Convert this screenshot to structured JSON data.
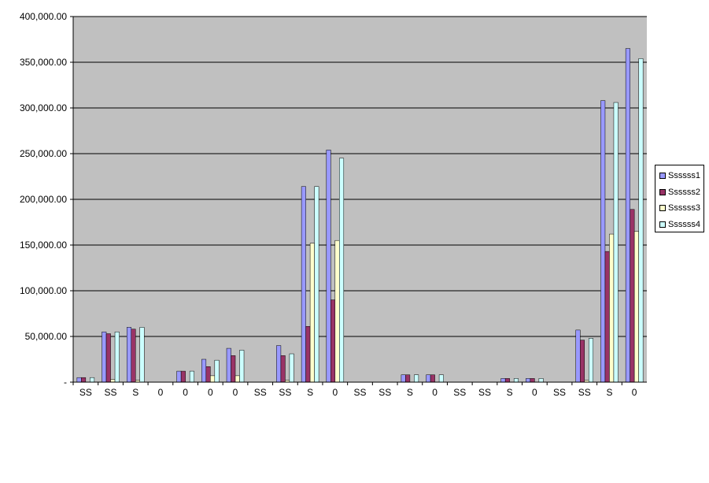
{
  "chart_data": {
    "type": "bar",
    "categories": [
      "SS",
      "SS",
      "S",
      "0",
      "0",
      "0",
      "0",
      "SS",
      "SS",
      "S",
      "0",
      "SS",
      "SS",
      "S",
      "0",
      "SS",
      "SS",
      "S",
      "0",
      "SS",
      "SS",
      "S",
      "0"
    ],
    "series": [
      {
        "name": "Ssssss1",
        "color": "#9999ff",
        "values": [
          5000,
          55000,
          60000,
          0,
          12000,
          25000,
          37000,
          0,
          40000,
          214000,
          254000,
          0,
          0,
          8000,
          8000,
          0,
          0,
          4000,
          4000,
          0,
          57000,
          308000,
          365000
        ]
      },
      {
        "name": "Ssssss2",
        "color": "#993366",
        "values": [
          5000,
          53000,
          58000,
          0,
          12000,
          17000,
          29000,
          0,
          29000,
          61000,
          90000,
          0,
          0,
          8000,
          8000,
          0,
          0,
          4000,
          4000,
          0,
          46000,
          143000,
          189000
        ]
      },
      {
        "name": "Ssssss3",
        "color": "#ffffcc",
        "values": [
          0,
          3000,
          2000,
          0,
          0,
          7000,
          7000,
          0,
          2000,
          152000,
          155000,
          0,
          0,
          0,
          0,
          0,
          0,
          0,
          0,
          0,
          2000,
          162000,
          165000
        ]
      },
      {
        "name": "Ssssss4",
        "color": "#ccffff",
        "values": [
          5000,
          55000,
          60000,
          0,
          12000,
          24000,
          35000,
          0,
          31000,
          214000,
          245000,
          0,
          0,
          8000,
          8000,
          0,
          0,
          4000,
          4000,
          0,
          48000,
          306000,
          354000
        ]
      }
    ],
    "ylim": [
      0,
      400000
    ],
    "yticks": [
      {
        "value": 0,
        "label": "-"
      },
      {
        "value": 50000,
        "label": "50,000.00"
      },
      {
        "value": 100000,
        "label": "100,000.00"
      },
      {
        "value": 150000,
        "label": "150,000.00"
      },
      {
        "value": 200000,
        "label": "200,000.00"
      },
      {
        "value": 250000,
        "label": "250,000.00"
      },
      {
        "value": 300000,
        "label": "300,000.00"
      },
      {
        "value": 350000,
        "label": "350,000.00"
      },
      {
        "value": 400000,
        "label": "400,000.00"
      }
    ],
    "title": "",
    "xlabel": "",
    "ylabel": "",
    "grid": true,
    "legend_position": "right",
    "plot_background": "#c0c0c0"
  }
}
